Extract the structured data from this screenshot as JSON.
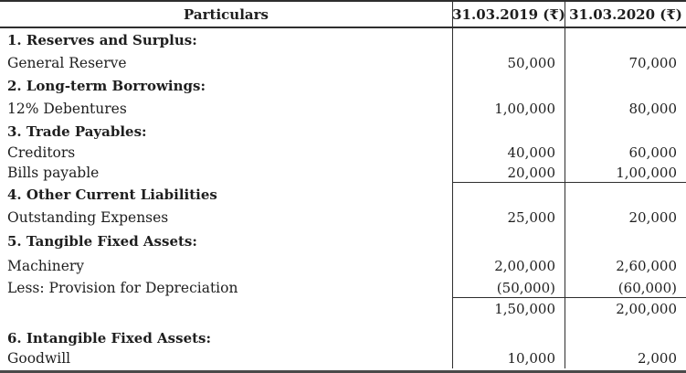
{
  "table": {
    "headers": {
      "particulars": "Particulars",
      "col2019": "31.03.2019 (₹)",
      "col2020": "31.03.2020 (₹)"
    },
    "rows": [
      {
        "particulars": "1. Reserves and Surplus:",
        "y2019": "",
        "y2020": ""
      },
      {
        "particulars": "General Reserve",
        "y2019": "50,000",
        "y2020": "70,000"
      },
      {
        "particulars": "2. Long-term Borrowings:",
        "y2019": "",
        "y2020": ""
      },
      {
        "particulars": "12% Debentures",
        "y2019": "1,00,000",
        "y2020": "80,000"
      },
      {
        "particulars": "3. Trade Payables:",
        "y2019": "",
        "y2020": ""
      },
      {
        "particulars": "Creditors",
        "y2019": "40,000",
        "y2020": "60,000"
      },
      {
        "particulars": "Bills payable",
        "y2019": "20,000",
        "y2020": "1,00,000"
      },
      {
        "particulars": "4. Other Current Liabilities",
        "y2019": "",
        "y2020": ""
      },
      {
        "particulars": "Outstanding Expenses",
        "y2019": "25,000",
        "y2020": "20,000"
      },
      {
        "particulars": "5. Tangible Fixed Assets:",
        "y2019": "",
        "y2020": ""
      },
      {
        "particulars": "Machinery",
        "y2019": "2,00,000",
        "y2020": "2,60,000"
      },
      {
        "particulars": "Less: Provision for Depreciation",
        "y2019": "(50,000)",
        "y2020": "(60,000)"
      },
      {
        "particulars": "",
        "y2019": "1,50,000",
        "y2020": "2,00,000"
      },
      {
        "particulars": "6. Intangible Fixed Assets:",
        "y2019": "",
        "y2020": ""
      },
      {
        "particulars": "Goodwill",
        "y2019": "10,000",
        "y2020": "2,000"
      }
    ],
    "colors": {
      "border": "#2e2e2e",
      "bottom_border": "#4a4a4a",
      "text": "#1e1e1e"
    }
  }
}
